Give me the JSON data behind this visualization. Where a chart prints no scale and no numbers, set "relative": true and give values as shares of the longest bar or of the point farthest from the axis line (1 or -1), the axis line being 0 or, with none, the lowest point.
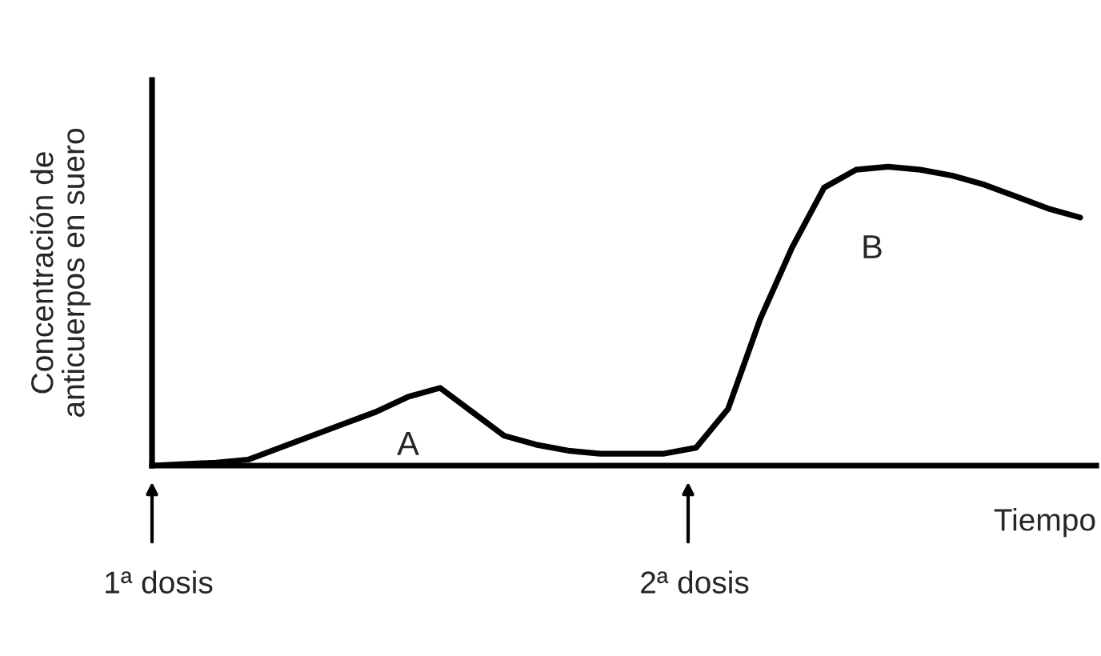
{
  "chart_data": {
    "type": "line",
    "relative": true,
    "xlabel": "Tiempo",
    "ylabel": "Concentración de\nanticuerpos en suero",
    "categories": [
      null,
      null,
      null,
      null,
      null,
      null,
      null,
      null,
      null,
      null,
      null,
      null,
      null,
      null,
      null,
      null,
      null,
      null,
      null,
      null,
      null,
      null,
      null,
      null,
      null,
      null,
      null,
      null,
      null,
      null
    ],
    "series": [
      {
        "color": "#000000",
        "values": [
          0,
          0.005,
          0.01,
          0.02,
          0.06,
          0.1,
          0.14,
          0.18,
          0.23,
          0.26,
          0.18,
          0.1,
          0.07,
          0.05,
          0.04,
          0.04,
          0.04,
          0.06,
          0.19,
          0.49,
          0.73,
          0.93,
          0.99,
          1.0,
          0.99,
          0.97,
          0.94,
          0.9,
          0.86,
          0.83
        ]
      }
    ],
    "annotations": [
      "A",
      "B",
      "1ª dosis",
      "2ª dosis"
    ],
    "marker": "none",
    "line_style": "solid",
    "grid": false,
    "legend": false
  }
}
